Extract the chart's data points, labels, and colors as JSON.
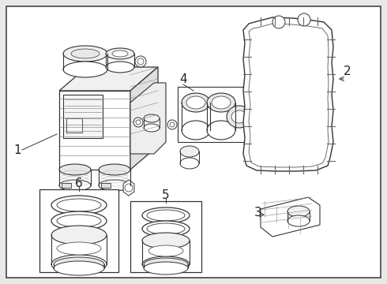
{
  "background_color": "#e8e8e8",
  "border_color": "#555555",
  "line_color": "#333333",
  "label_color": "#222222",
  "figsize": [
    4.9,
    3.6
  ],
  "dpi": 100
}
